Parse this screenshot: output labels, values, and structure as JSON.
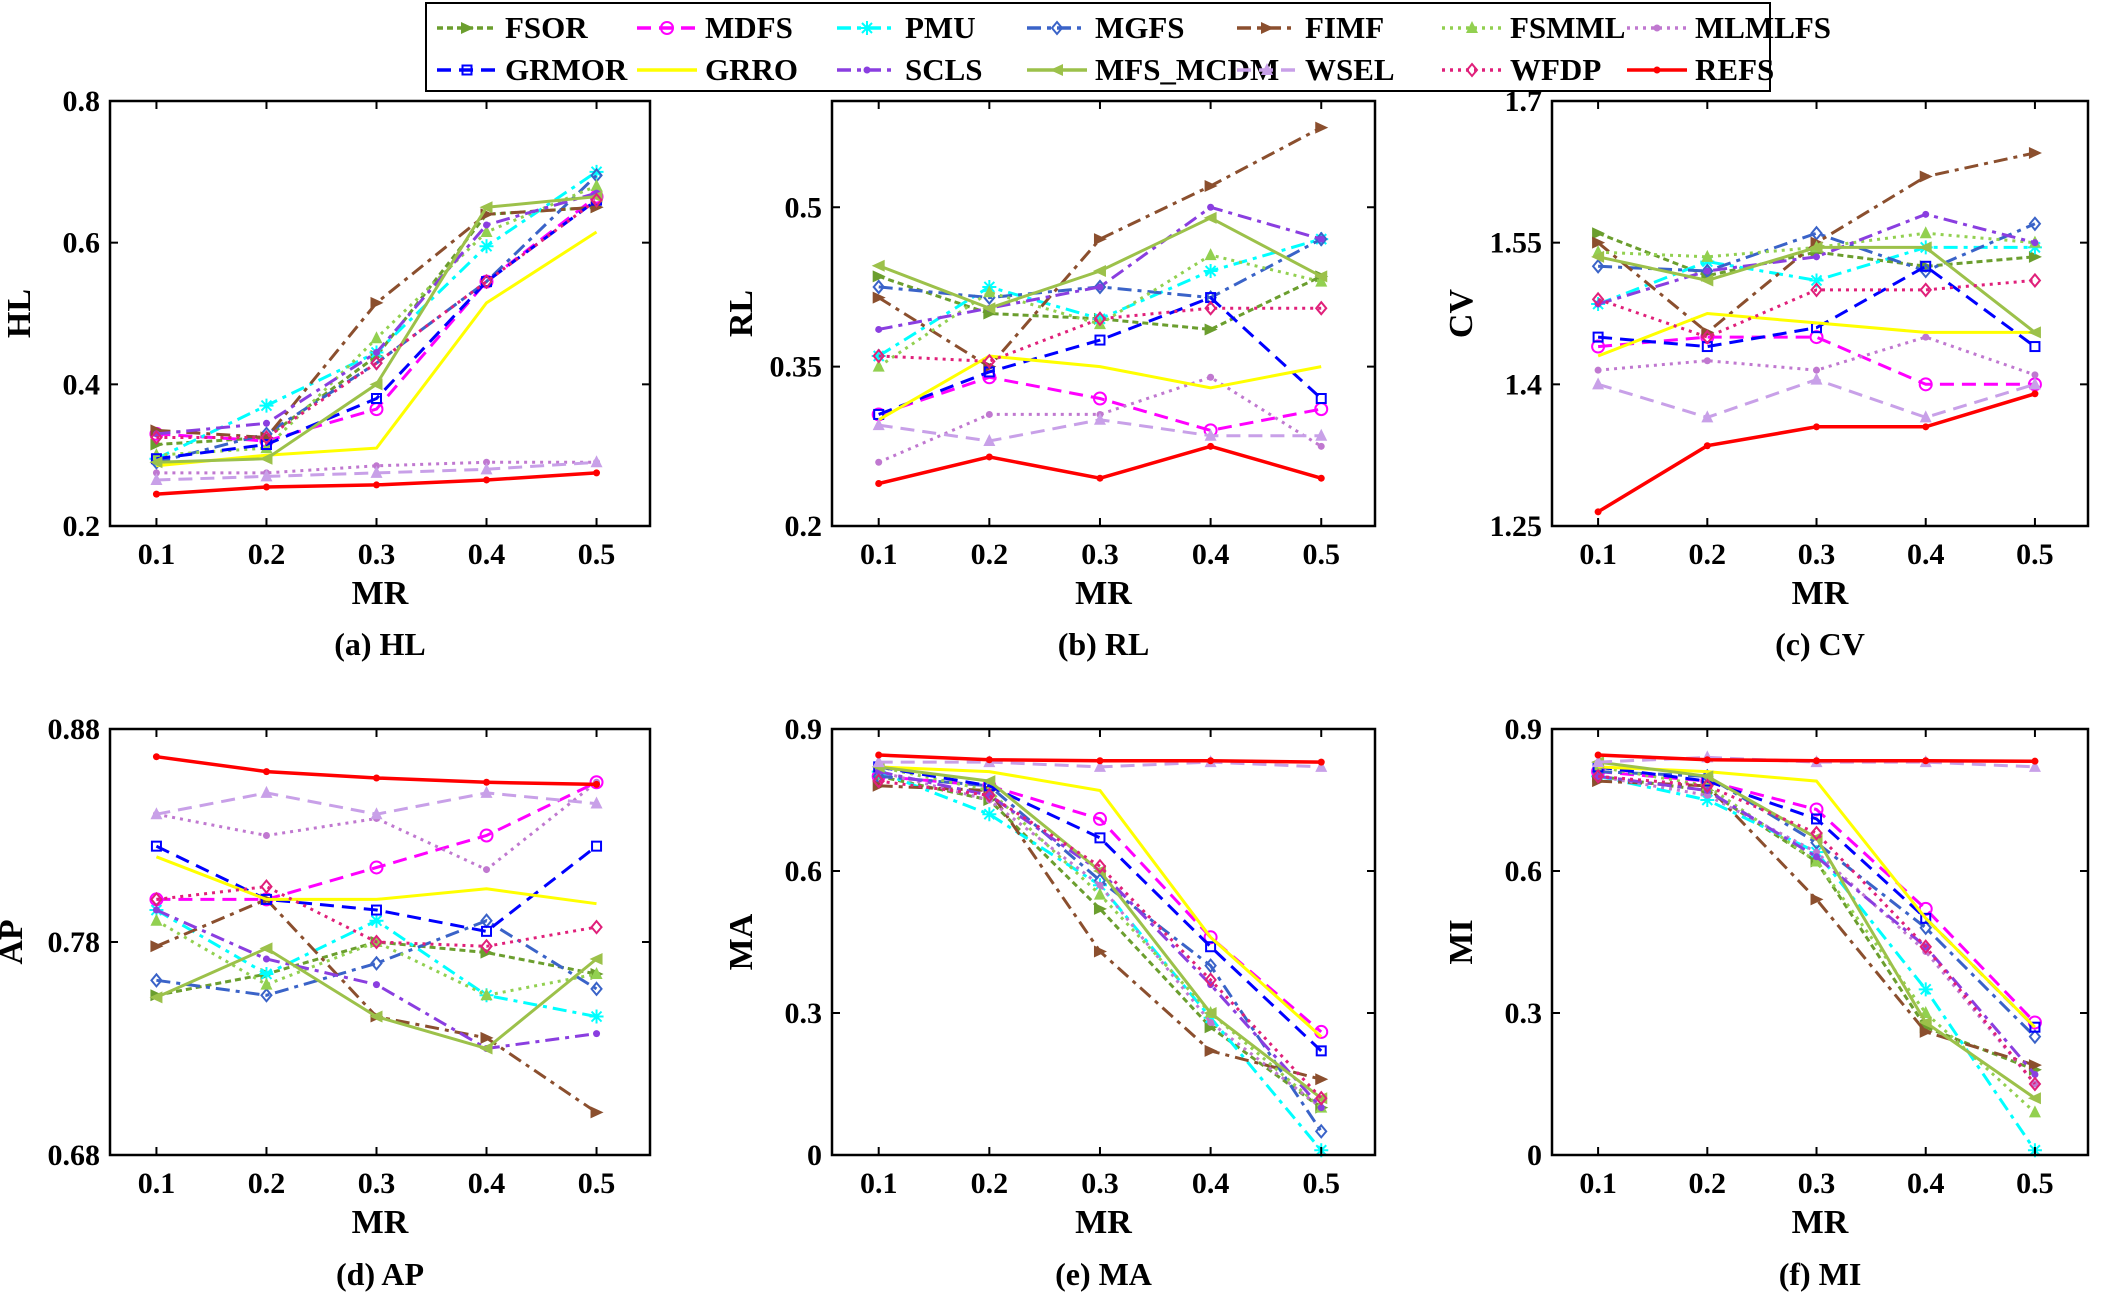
{
  "colors": {
    "FSOR": "#6b9e2e",
    "MDFS": "#ff00ff",
    "PMU": "#00ffff",
    "MGFS": "#3a63c8",
    "FIMF": "#8b4f2e",
    "FSMML": "#92d050",
    "MLMLFS": "#c078d0",
    "GRMOR": "#0000ff",
    "GRRO": "#ffff00",
    "SCLS": "#8a3ee0",
    "MFS_MCDM": "#9cc14a",
    "WSEL": "#c8a0e8",
    "WFDP": "#e0207a",
    "REFS": "#ff0000"
  },
  "legend": [
    {
      "name": "FSOR",
      "dash": "6,4",
      "marker": "triangle-right"
    },
    {
      "name": "MDFS",
      "dash": "14,8",
      "marker": "circle"
    },
    {
      "name": "PMU",
      "dash": "14,6,4,6",
      "marker": "star"
    },
    {
      "name": "MGFS",
      "dash": "14,6,4,6",
      "marker": "diamond"
    },
    {
      "name": "FIMF",
      "dash": "14,6,4,6",
      "marker": "triangle-right"
    },
    {
      "name": "FSMML",
      "dash": "3,5",
      "marker": "triangle-up"
    },
    {
      "name": "MLMLFS",
      "dash": "3,5",
      "marker": "dot"
    },
    {
      "name": "GRMOR",
      "dash": "14,8",
      "marker": "square"
    },
    {
      "name": "GRRO",
      "dash": "",
      "marker": "none"
    },
    {
      "name": "SCLS",
      "dash": "14,6,4,6",
      "marker": "dot"
    },
    {
      "name": "MFS_MCDM",
      "dash": "",
      "marker": "triangle-left"
    },
    {
      "name": "WSEL",
      "dash": "14,8",
      "marker": "triangle-up"
    },
    {
      "name": "WFDP",
      "dash": "3,5",
      "marker": "diamond"
    },
    {
      "name": "REFS",
      "dash": "",
      "marker": "dot"
    }
  ],
  "chart_data": [
    {
      "type": "line",
      "id": "hl",
      "caption": "(a) HL",
      "xlabel": "MR",
      "ylabel": "HL",
      "x": [
        0.1,
        0.2,
        0.3,
        0.4,
        0.5
      ],
      "xticks": [
        "0.1",
        "0.2",
        "0.3",
        "0.4",
        "0.5"
      ],
      "ylim": [
        0.2,
        0.8
      ],
      "yticks": [
        0.2,
        0.4,
        0.6,
        0.8
      ],
      "ytick_labels": [
        "0.2",
        "0.4",
        "0.6",
        "0.8"
      ],
      "series": [
        {
          "name": "FSOR",
          "values": [
            0.315,
            0.325,
            0.44,
            0.64,
            0.65
          ]
        },
        {
          "name": "MDFS",
          "values": [
            0.33,
            0.32,
            0.365,
            0.545,
            0.665
          ]
        },
        {
          "name": "PMU",
          "values": [
            0.295,
            0.37,
            0.445,
            0.595,
            0.7
          ]
        },
        {
          "name": "MGFS",
          "values": [
            0.29,
            0.33,
            0.43,
            0.545,
            0.695
          ]
        },
        {
          "name": "FIMF",
          "values": [
            0.335,
            0.325,
            0.515,
            0.64,
            0.65
          ]
        },
        {
          "name": "FSMML",
          "values": [
            0.3,
            0.31,
            0.465,
            0.615,
            0.68
          ]
        },
        {
          "name": "MLMLFS",
          "values": [
            0.275,
            0.275,
            0.285,
            0.29,
            0.29
          ]
        },
        {
          "name": "GRMOR",
          "values": [
            0.295,
            0.315,
            0.38,
            0.545,
            0.66
          ]
        },
        {
          "name": "GRRO",
          "values": [
            0.285,
            0.3,
            0.31,
            0.515,
            0.615
          ]
        },
        {
          "name": "SCLS",
          "values": [
            0.33,
            0.345,
            0.445,
            0.625,
            0.67
          ]
        },
        {
          "name": "MFS_MCDM",
          "values": [
            0.29,
            0.295,
            0.4,
            0.65,
            0.665
          ]
        },
        {
          "name": "WSEL",
          "values": [
            0.265,
            0.27,
            0.275,
            0.28,
            0.29
          ]
        },
        {
          "name": "WFDP",
          "values": [
            0.325,
            0.325,
            0.43,
            0.545,
            0.66
          ]
        },
        {
          "name": "REFS",
          "values": [
            0.245,
            0.255,
            0.258,
            0.265,
            0.275
          ]
        }
      ]
    },
    {
      "type": "line",
      "id": "rl",
      "caption": "(b) RL",
      "xlabel": "MR",
      "ylabel": "RL",
      "x": [
        0.1,
        0.2,
        0.3,
        0.4,
        0.5
      ],
      "xticks": [
        "0.1",
        "0.2",
        "0.3",
        "0.4",
        "0.5"
      ],
      "ylim": [
        0.2,
        0.6
      ],
      "yticks": [
        0.2,
        0.35,
        0.5
      ],
      "ytick_labels": [
        "0.2",
        "0.35",
        "0.5"
      ],
      "series": [
        {
          "name": "FSOR",
          "values": [
            0.435,
            0.4,
            0.395,
            0.385,
            0.435
          ]
        },
        {
          "name": "MDFS",
          "values": [
            0.305,
            0.34,
            0.32,
            0.29,
            0.31
          ]
        },
        {
          "name": "PMU",
          "values": [
            0.36,
            0.425,
            0.395,
            0.44,
            0.47
          ]
        },
        {
          "name": "MGFS",
          "values": [
            0.425,
            0.415,
            0.425,
            0.415,
            0.47
          ]
        },
        {
          "name": "FIMF",
          "values": [
            0.415,
            0.35,
            0.47,
            0.52,
            0.575
          ]
        },
        {
          "name": "FSMML",
          "values": [
            0.35,
            0.42,
            0.39,
            0.455,
            0.43
          ]
        },
        {
          "name": "MLMLFS",
          "values": [
            0.26,
            0.305,
            0.305,
            0.34,
            0.275
          ]
        },
        {
          "name": "GRMOR",
          "values": [
            0.305,
            0.345,
            0.375,
            0.415,
            0.32
          ]
        },
        {
          "name": "GRRO",
          "values": [
            0.3,
            0.36,
            0.35,
            0.33,
            0.35
          ]
        },
        {
          "name": "SCLS",
          "values": [
            0.385,
            0.405,
            0.425,
            0.5,
            0.47
          ]
        },
        {
          "name": "MFS_MCDM",
          "values": [
            0.445,
            0.405,
            0.44,
            0.49,
            0.435
          ]
        },
        {
          "name": "WSEL",
          "values": [
            0.295,
            0.28,
            0.3,
            0.285,
            0.285
          ]
        },
        {
          "name": "WFDP",
          "values": [
            0.36,
            0.355,
            0.395,
            0.405,
            0.405
          ]
        },
        {
          "name": "REFS",
          "values": [
            0.24,
            0.265,
            0.245,
            0.275,
            0.245
          ]
        }
      ]
    },
    {
      "type": "line",
      "id": "cv",
      "caption": "(c) CV",
      "xlabel": "MR",
      "ylabel": "CV",
      "x": [
        0.1,
        0.2,
        0.3,
        0.4,
        0.5
      ],
      "xticks": [
        "0.1",
        "0.2",
        "0.3",
        "0.4",
        "0.5"
      ],
      "ylim": [
        1.25,
        1.7
      ],
      "yticks": [
        1.25,
        1.4,
        1.55,
        1.7
      ],
      "ytick_labels": [
        "1.25",
        "1.4",
        "1.55",
        "1.7"
      ],
      "series": [
        {
          "name": "FSOR",
          "values": [
            1.56,
            1.515,
            1.54,
            1.525,
            1.535
          ]
        },
        {
          "name": "MDFS",
          "values": [
            1.44,
            1.45,
            1.45,
            1.4,
            1.4
          ]
        },
        {
          "name": "PMU",
          "values": [
            1.485,
            1.53,
            1.51,
            1.545,
            1.545
          ]
        },
        {
          "name": "MGFS",
          "values": [
            1.525,
            1.52,
            1.56,
            1.52,
            1.57
          ]
        },
        {
          "name": "FIMF",
          "values": [
            1.55,
            1.455,
            1.55,
            1.62,
            1.645
          ]
        },
        {
          "name": "FSMML",
          "values": [
            1.54,
            1.535,
            1.545,
            1.56,
            1.55
          ]
        },
        {
          "name": "MLMLFS",
          "values": [
            1.415,
            1.425,
            1.415,
            1.45,
            1.41
          ]
        },
        {
          "name": "GRMOR",
          "values": [
            1.45,
            1.44,
            1.46,
            1.525,
            1.44
          ]
        },
        {
          "name": "GRRO",
          "values": [
            1.43,
            1.475,
            1.465,
            1.455,
            1.455
          ]
        },
        {
          "name": "SCLS",
          "values": [
            1.485,
            1.52,
            1.535,
            1.58,
            1.55
          ]
        },
        {
          "name": "MFS_MCDM",
          "values": [
            1.535,
            1.51,
            1.545,
            1.545,
            1.455
          ]
        },
        {
          "name": "WSEL",
          "values": [
            1.4,
            1.365,
            1.405,
            1.365,
            1.4
          ]
        },
        {
          "name": "WFDP",
          "values": [
            1.49,
            1.45,
            1.5,
            1.5,
            1.51
          ]
        },
        {
          "name": "REFS",
          "values": [
            1.265,
            1.335,
            1.355,
            1.355,
            1.39
          ]
        }
      ]
    },
    {
      "type": "line",
      "id": "ap",
      "caption": "(d) AP",
      "xlabel": "MR",
      "ylabel": "AP",
      "x": [
        0.1,
        0.2,
        0.3,
        0.4,
        0.5
      ],
      "xticks": [
        "0.1",
        "0.2",
        "0.3",
        "0.4",
        "0.5"
      ],
      "ylim": [
        0.68,
        0.88
      ],
      "yticks": [
        0.68,
        0.78,
        0.88
      ],
      "ytick_labels": [
        "0.68",
        "0.78",
        "0.88"
      ],
      "series": [
        {
          "name": "FSOR",
          "values": [
            0.755,
            0.765,
            0.78,
            0.775,
            0.765
          ]
        },
        {
          "name": "MDFS",
          "values": [
            0.8,
            0.8,
            0.815,
            0.83,
            0.855
          ]
        },
        {
          "name": "PMU",
          "values": [
            0.795,
            0.765,
            0.79,
            0.755,
            0.745
          ]
        },
        {
          "name": "MGFS",
          "values": [
            0.762,
            0.755,
            0.77,
            0.79,
            0.758
          ]
        },
        {
          "name": "FIMF",
          "values": [
            0.778,
            0.8,
            0.745,
            0.735,
            0.7
          ]
        },
        {
          "name": "FSMML",
          "values": [
            0.79,
            0.76,
            0.78,
            0.755,
            0.765
          ]
        },
        {
          "name": "MLMLFS",
          "values": [
            0.84,
            0.83,
            0.838,
            0.814,
            0.855
          ]
        },
        {
          "name": "GRMOR",
          "values": [
            0.825,
            0.8,
            0.795,
            0.785,
            0.825
          ]
        },
        {
          "name": "GRRO",
          "values": [
            0.82,
            0.8,
            0.8,
            0.805,
            0.798
          ]
        },
        {
          "name": "SCLS",
          "values": [
            0.795,
            0.772,
            0.76,
            0.73,
            0.737
          ]
        },
        {
          "name": "MFS_MCDM",
          "values": [
            0.754,
            0.777,
            0.745,
            0.73,
            0.772
          ]
        },
        {
          "name": "WSEL",
          "values": [
            0.84,
            0.85,
            0.84,
            0.85,
            0.845
          ]
        },
        {
          "name": "WFDP",
          "values": [
            0.8,
            0.806,
            0.78,
            0.778,
            0.787
          ]
        },
        {
          "name": "REFS",
          "values": [
            0.867,
            0.86,
            0.857,
            0.855,
            0.854
          ]
        }
      ]
    },
    {
      "type": "line",
      "id": "ma",
      "caption": "(e) MA",
      "xlabel": "MR",
      "ylabel": "MA",
      "x": [
        0.1,
        0.2,
        0.3,
        0.4,
        0.5
      ],
      "xticks": [
        "0.1",
        "0.2",
        "0.3",
        "0.4",
        "0.5"
      ],
      "ylim": [
        0,
        0.9
      ],
      "yticks": [
        0,
        0.3,
        0.6,
        0.9
      ],
      "ytick_labels": [
        "0",
        "0.3",
        "0.6",
        "0.9"
      ],
      "series": [
        {
          "name": "FSOR",
          "values": [
            0.8,
            0.75,
            0.52,
            0.27,
            0.1
          ]
        },
        {
          "name": "MDFS",
          "values": [
            0.8,
            0.78,
            0.71,
            0.46,
            0.26
          ]
        },
        {
          "name": "PMU",
          "values": [
            0.81,
            0.72,
            0.57,
            0.29,
            0.01
          ]
        },
        {
          "name": "MGFS",
          "values": [
            0.8,
            0.78,
            0.58,
            0.4,
            0.05
          ]
        },
        {
          "name": "FIMF",
          "values": [
            0.78,
            0.77,
            0.43,
            0.22,
            0.16
          ]
        },
        {
          "name": "FSMML",
          "values": [
            0.82,
            0.77,
            0.55,
            0.3,
            0.1
          ]
        },
        {
          "name": "MLMLFS",
          "values": [
            0.81,
            0.75,
            0.57,
            0.28,
            0.1
          ]
        },
        {
          "name": "GRMOR",
          "values": [
            0.82,
            0.78,
            0.67,
            0.44,
            0.22
          ]
        },
        {
          "name": "GRRO",
          "values": [
            0.82,
            0.81,
            0.77,
            0.46,
            0.25
          ]
        },
        {
          "name": "SCLS",
          "values": [
            0.81,
            0.76,
            0.6,
            0.36,
            0.1
          ]
        },
        {
          "name": "MFS_MCDM",
          "values": [
            0.82,
            0.79,
            0.6,
            0.3,
            0.12
          ]
        },
        {
          "name": "WSEL",
          "values": [
            0.83,
            0.83,
            0.82,
            0.83,
            0.82
          ]
        },
        {
          "name": "WFDP",
          "values": [
            0.79,
            0.76,
            0.61,
            0.37,
            0.12
          ]
        },
        {
          "name": "REFS",
          "values": [
            0.845,
            0.835,
            0.833,
            0.833,
            0.83
          ]
        }
      ]
    },
    {
      "type": "line",
      "id": "mi",
      "caption": "(f) MI",
      "xlabel": "MR",
      "ylabel": "MI",
      "x": [
        0.1,
        0.2,
        0.3,
        0.4,
        0.5
      ],
      "xticks": [
        "0.1",
        "0.2",
        "0.3",
        "0.4",
        "0.5"
      ],
      "ylim": [
        0,
        0.9
      ],
      "yticks": [
        0,
        0.3,
        0.6,
        0.9
      ],
      "ytick_labels": [
        "0",
        "0.3",
        "0.6",
        "0.9"
      ],
      "series": [
        {
          "name": "FSOR",
          "values": [
            0.8,
            0.77,
            0.62,
            0.27,
            0.18
          ]
        },
        {
          "name": "MDFS",
          "values": [
            0.81,
            0.79,
            0.73,
            0.52,
            0.28
          ]
        },
        {
          "name": "PMU",
          "values": [
            0.8,
            0.75,
            0.64,
            0.35,
            0.01
          ]
        },
        {
          "name": "MGFS",
          "values": [
            0.81,
            0.8,
            0.66,
            0.48,
            0.25
          ]
        },
        {
          "name": "FIMF",
          "values": [
            0.79,
            0.78,
            0.54,
            0.26,
            0.19
          ]
        },
        {
          "name": "FSMML",
          "values": [
            0.82,
            0.78,
            0.62,
            0.3,
            0.09
          ]
        },
        {
          "name": "MLMLFS",
          "values": [
            0.8,
            0.76,
            0.64,
            0.43,
            0.15
          ]
        },
        {
          "name": "GRMOR",
          "values": [
            0.82,
            0.79,
            0.71,
            0.5,
            0.27
          ]
        },
        {
          "name": "GRRO",
          "values": [
            0.82,
            0.81,
            0.79,
            0.5,
            0.27
          ]
        },
        {
          "name": "SCLS",
          "values": [
            0.8,
            0.77,
            0.63,
            0.44,
            0.17
          ]
        },
        {
          "name": "MFS_MCDM",
          "values": [
            0.83,
            0.8,
            0.67,
            0.28,
            0.12
          ]
        },
        {
          "name": "WSEL",
          "values": [
            0.83,
            0.84,
            0.83,
            0.83,
            0.82
          ]
        },
        {
          "name": "WFDP",
          "values": [
            0.8,
            0.78,
            0.68,
            0.44,
            0.15
          ]
        },
        {
          "name": "REFS",
          "values": [
            0.845,
            0.835,
            0.833,
            0.833,
            0.832
          ]
        }
      ]
    }
  ]
}
